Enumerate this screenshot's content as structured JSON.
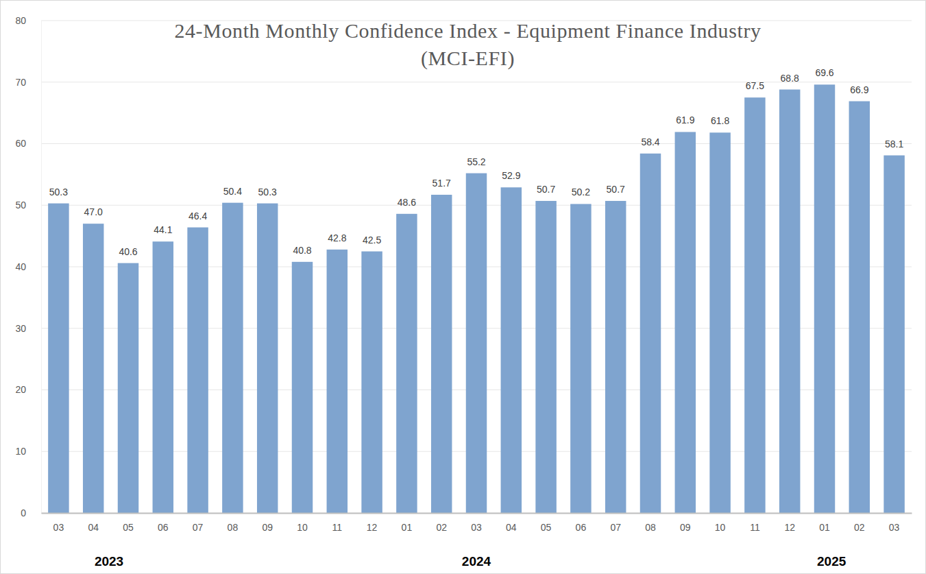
{
  "chart_data": {
    "type": "bar",
    "title": "24-Month Monthly Confidence Index - Equipment Finance Industry\n(MCI-EFI)",
    "categories": [
      "03",
      "04",
      "05",
      "06",
      "07",
      "08",
      "09",
      "10",
      "11",
      "12",
      "01",
      "02",
      "03",
      "04",
      "05",
      "06",
      "07",
      "08",
      "09",
      "10",
      "11",
      "12",
      "01",
      "02",
      "03"
    ],
    "values": [
      50.3,
      47.0,
      40.6,
      44.1,
      46.4,
      50.4,
      50.3,
      40.8,
      42.8,
      42.5,
      48.6,
      51.7,
      55.2,
      52.9,
      50.7,
      50.2,
      50.7,
      58.4,
      61.9,
      61.8,
      67.5,
      68.8,
      69.6,
      66.9,
      58.1
    ],
    "value_labels": [
      "50.3",
      "47.0",
      "40.6",
      "44.1",
      "46.4",
      "50.4",
      "50.3",
      "40.8",
      "42.8",
      "42.5",
      "48.6",
      "51.7",
      "55.2",
      "52.9",
      "50.7",
      "50.2",
      "50.7",
      "58.4",
      "61.9",
      "61.8",
      "67.5",
      "68.8",
      "69.6",
      "66.9",
      "58.1"
    ],
    "annotations": [
      "2023",
      "2024",
      "2025"
    ],
    "color": "#7fa4cf",
    "ylim": [
      0,
      80
    ],
    "yticks": [
      0,
      10,
      20,
      30,
      40,
      50,
      60,
      70,
      80
    ],
    "grid": true,
    "data_labels": true
  }
}
